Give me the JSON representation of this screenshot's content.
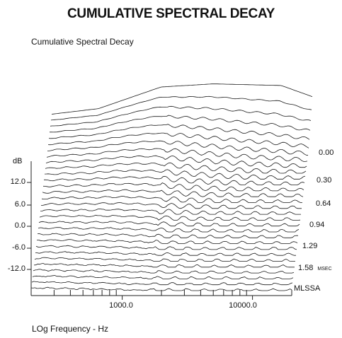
{
  "heading": "CUMULATIVE SPECTRAL DECAY",
  "chart_data": {
    "type": "waterfall",
    "title": "Cumulative Spectral Decay",
    "ylabel": "dB",
    "xlabel": "LOg Frequency - Hz",
    "x_scale": "log",
    "xlim": [
      200,
      20000
    ],
    "ylim": [
      -15,
      15
    ],
    "y_ticks": [
      "12.0",
      "6.0",
      "0.0",
      "-6.0",
      "-12.0"
    ],
    "x_ticks": [
      "1000.0",
      "10000.0"
    ],
    "time_unit": "MSEC",
    "time_labels": [
      "0.00",
      "0.30",
      "0.64",
      "0.94",
      "1.29",
      "1.58"
    ],
    "brand": "MLSSA",
    "slice_count": 30
  }
}
